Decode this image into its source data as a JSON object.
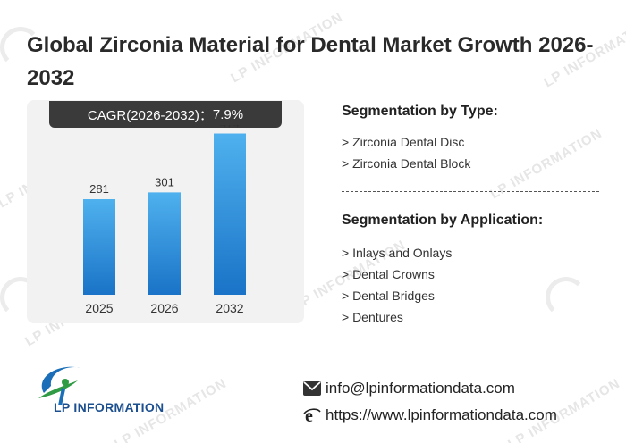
{
  "title": "Global Zirconia Material for Dental Market Growth 2026-2032",
  "cagr": {
    "label": "CAGR(2026-2032)：",
    "value": "7.9%"
  },
  "chart_data": {
    "type": "bar",
    "categories": [
      "2025",
      "2026",
      "2032"
    ],
    "values": [
      281,
      301,
      474
    ],
    "ylim": [
      0,
      520
    ],
    "colors": {
      "top": "#4fb1ee",
      "bottom": "#1a73c7"
    }
  },
  "segmentation": {
    "type_title": "Segmentation by Type:",
    "types": [
      "> Zirconia Dental Disc",
      "> Zirconia Dental Block"
    ],
    "application_title": "Segmentation by Application:",
    "applications": [
      "> Inlays and Onlays",
      "> Dental Crowns",
      "> Dental Bridges",
      "> Dentures"
    ]
  },
  "brand": {
    "logo_text": "LP INFORMATION"
  },
  "watermark_text": "LP INFORMATION",
  "contact": {
    "email": "info@lpinformationdata.com",
    "website": "https://www.lpinformationdata.com",
    "email_icon": "envelope-icon",
    "web_icon": "browser-e-icon"
  }
}
